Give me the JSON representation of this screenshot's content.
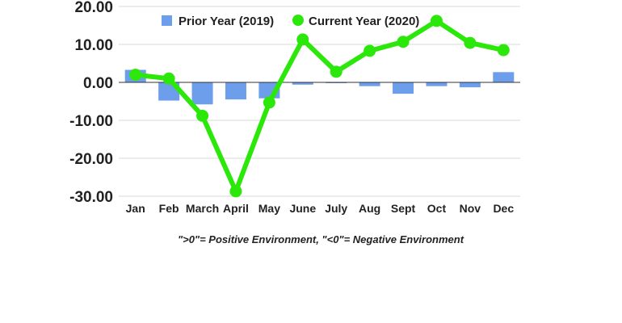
{
  "chart_data": {
    "type": "bar+line",
    "categories": [
      "Jan",
      "Feb",
      "March",
      "April",
      "May",
      "June",
      "July",
      "Aug",
      "Sept",
      "Oct",
      "Nov",
      "Dec"
    ],
    "series": [
      {
        "name": "Prior Year (2019)",
        "type": "bar",
        "color": "#6d9eeb",
        "values": [
          3.3,
          -4.8,
          -5.8,
          -4.5,
          -4.2,
          -0.6,
          -0.2,
          -1.0,
          -3.0,
          -1.0,
          -1.3,
          2.7
        ]
      },
      {
        "name": "Current Year (2020)",
        "type": "line",
        "color": "#2be80a",
        "values": [
          2.0,
          1.0,
          -8.8,
          -28.7,
          -5.3,
          11.3,
          2.8,
          8.3,
          10.7,
          16.2,
          10.4,
          8.5
        ]
      }
    ],
    "yticks": [
      "20.00",
      "10.00",
      "0.00",
      "-10.00",
      "-20.00",
      "-30.00"
    ],
    "ytick_values": [
      20,
      10,
      0,
      -10,
      -20,
      -30
    ],
    "ylim": [
      -30,
      20
    ],
    "legend_position": "top",
    "caption": "\">0\"= Positive Environment, \"<0\"= Negative Environment",
    "grid": true
  }
}
